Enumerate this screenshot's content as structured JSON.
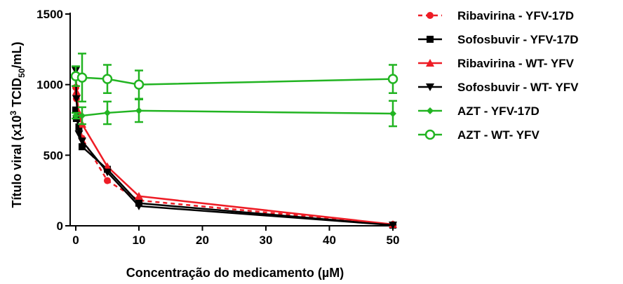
{
  "chart_data": {
    "type": "line",
    "xlabel": "Concentração do medicamento (µM)",
    "ylabel": {
      "prefix": "Título viral (x10",
      "sup": "3",
      "middle": " TCID",
      "sub": "50",
      "suffix": "/mL)"
    },
    "xlim": [
      0,
      50
    ],
    "ylim": [
      0,
      1500
    ],
    "x_break": [
      12,
      45
    ],
    "xticks": [
      0,
      10,
      20,
      30,
      40,
      50
    ],
    "yticks": [
      0,
      500,
      1000,
      1500
    ],
    "grid": false,
    "legend_position": "right",
    "colors": {
      "red": "#ee1c25",
      "black": "#000000",
      "green": "#22b422"
    },
    "series": [
      {
        "name": "Ribavirina - YFV-17D",
        "color": "#ee1c25",
        "dash": "6,5",
        "marker": "circle",
        "x": [
          0,
          0.1,
          0.5,
          1,
          5,
          10,
          50
        ],
        "y": [
          980,
          900,
          780,
          620,
          320,
          180,
          10
        ]
      },
      {
        "name": "Sofosbuvir - YFV-17D",
        "color": "#000000",
        "dash": "",
        "marker": "square",
        "x": [
          0,
          0.1,
          0.5,
          1,
          5,
          10,
          50
        ],
        "y": [
          820,
          760,
          700,
          560,
          400,
          160,
          5
        ]
      },
      {
        "name": "Ribavirina - WT- YFV",
        "color": "#ee1c25",
        "dash": "",
        "marker": "triangle-up",
        "x": [
          0,
          0.1,
          0.5,
          1,
          5,
          10,
          50
        ],
        "y": [
          1070,
          950,
          800,
          720,
          420,
          210,
          10
        ]
      },
      {
        "name": "Sofosbuvir - WT- YFV",
        "color": "#000000",
        "dash": "",
        "marker": "triangle-down",
        "x": [
          0,
          0.1,
          0.5,
          1,
          5,
          10,
          50
        ],
        "y": [
          1100,
          900,
          650,
          600,
          380,
          140,
          5
        ]
      },
      {
        "name": "AZT - YFV-17D",
        "color": "#22b422",
        "dash": "",
        "marker": "diamond",
        "x": [
          0,
          1,
          5,
          10,
          50
        ],
        "y": [
          780,
          780,
          800,
          815,
          795
        ],
        "err": [
          20,
          60,
          80,
          80,
          90
        ]
      },
      {
        "name": "AZT - WT- YFV",
        "color": "#22b422",
        "dash": "",
        "marker": "circle-open",
        "x": [
          0,
          1,
          5,
          10,
          50
        ],
        "y": [
          1060,
          1050,
          1040,
          1000,
          1040
        ],
        "err": [
          70,
          170,
          100,
          100,
          100
        ]
      }
    ]
  }
}
